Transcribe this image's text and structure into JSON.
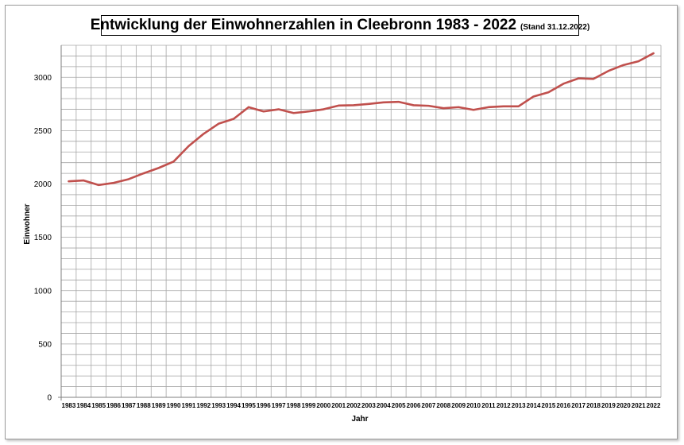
{
  "chart_data": {
    "type": "line",
    "title": "Entwicklung der Einwohnerzahlen in Cleebronn 1983 - 2022",
    "subtitle": "(Stand 31.12.2022)",
    "xlabel": "Jahr",
    "ylabel": "Einwohner",
    "ylim": [
      0,
      3300
    ],
    "yticks": [
      0,
      500,
      1000,
      1500,
      2000,
      2500,
      3000
    ],
    "grid": true,
    "line_color": "#c0504d",
    "grid_color": "#a6a6a6",
    "x": [
      "1983",
      "1984",
      "1985",
      "1986",
      "1987",
      "1988",
      "1989",
      "1990",
      "1991",
      "1992",
      "1993",
      "1994",
      "1995",
      "1996",
      "1997",
      "1998",
      "1999",
      "2000",
      "2001",
      "2002",
      "2003",
      "2004",
      "2005",
      "2006",
      "2007",
      "2008",
      "2009",
      "2010",
      "2011",
      "2012",
      "2013",
      "2014",
      "2015",
      "2016",
      "2017",
      "2018",
      "2019",
      "2020",
      "2021",
      "2022"
    ],
    "values": [
      2025,
      2033,
      1990,
      2010,
      2045,
      2100,
      2150,
      2210,
      2355,
      2470,
      2565,
      2610,
      2720,
      2680,
      2700,
      2665,
      2680,
      2700,
      2735,
      2738,
      2750,
      2765,
      2770,
      2738,
      2733,
      2710,
      2720,
      2695,
      2720,
      2728,
      2728,
      2820,
      2860,
      2940,
      2990,
      2985,
      3060,
      3115,
      3150,
      3225
    ]
  }
}
